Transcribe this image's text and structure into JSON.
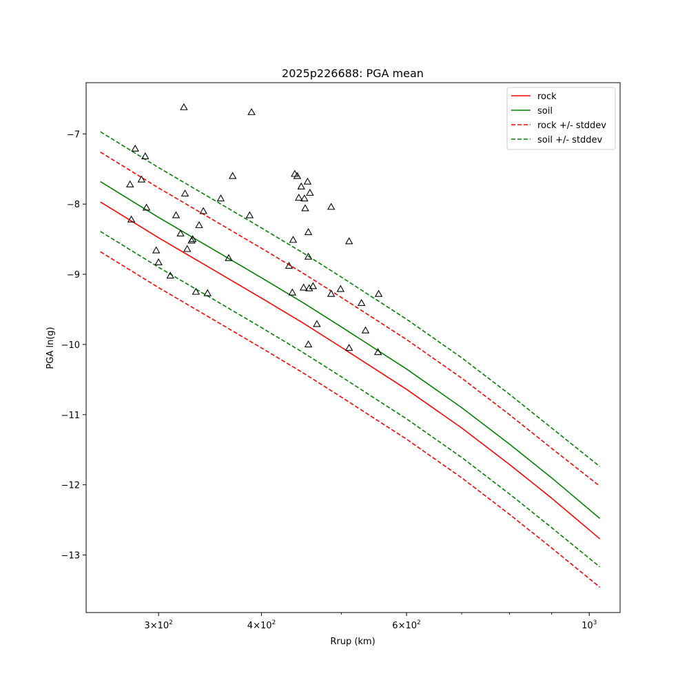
{
  "chart_data": {
    "type": "line",
    "title": "2025p226688: PGA mean",
    "xlabel": "Rrup (km)",
    "ylabel": "PGA ln(g)",
    "xscale": "log",
    "xlim": [
      245,
      1090
    ],
    "ylim": [
      -13.82,
      -6.27
    ],
    "grid": false,
    "legend_position": "top-right",
    "x_tick_labels": [
      {
        "value": 300,
        "base": "3",
        "mult": "×",
        "pow_base": "10",
        "exp": "2"
      },
      {
        "value": 400,
        "base": "4",
        "mult": "×",
        "pow_base": "10",
        "exp": "2"
      },
      {
        "value": 600,
        "base": "6",
        "mult": "×",
        "pow_base": "10",
        "exp": "2"
      },
      {
        "value": 1000,
        "base": "",
        "mult": "",
        "pow_base": "10",
        "exp": "3"
      }
    ],
    "y_ticks": [
      -7,
      -8,
      -9,
      -10,
      -11,
      -12,
      -13
    ],
    "y_tick_labels": [
      "−7",
      "−8",
      "−9",
      "−10",
      "−11",
      "−12",
      "−13"
    ],
    "series": [
      {
        "name": "rock",
        "color": "#ff0000",
        "style": "solid",
        "x": [
          255,
          300,
          350,
          400,
          450,
          500,
          600,
          700,
          800,
          900,
          1030
        ],
        "y": [
          -7.97,
          -8.48,
          -8.94,
          -9.34,
          -9.7,
          -10.04,
          -10.64,
          -11.19,
          -11.71,
          -12.19,
          -12.77
        ]
      },
      {
        "name": "soil",
        "color": "#008000",
        "style": "solid",
        "x": [
          255,
          300,
          350,
          400,
          450,
          500,
          600,
          700,
          800,
          900,
          1030
        ],
        "y": [
          -7.68,
          -8.19,
          -8.65,
          -9.05,
          -9.41,
          -9.75,
          -10.35,
          -10.9,
          -11.42,
          -11.9,
          -12.48
        ]
      },
      {
        "name": "rock +/- stddev",
        "color": "#ff0000",
        "style": "dashed",
        "x": [
          255,
          300,
          350,
          400,
          450,
          500,
          600,
          700,
          800,
          900,
          1030
        ],
        "y": [
          -7.26,
          -7.77,
          -8.23,
          -8.63,
          -8.99,
          -9.33,
          -9.93,
          -10.48,
          -11.0,
          -11.48,
          -12.02
        ]
      },
      {
        "name": "",
        "color": "#ff0000",
        "style": "dashed",
        "x": [
          255,
          300,
          350,
          400,
          450,
          500,
          600,
          700,
          800,
          900,
          1030
        ],
        "y": [
          -8.68,
          -9.19,
          -9.65,
          -10.05,
          -10.41,
          -10.75,
          -11.35,
          -11.9,
          -12.42,
          -12.9,
          -13.46
        ]
      },
      {
        "name": "soil +/- stddev",
        "color": "#008000",
        "style": "dashed",
        "x": [
          255,
          300,
          350,
          400,
          450,
          500,
          600,
          700,
          800,
          900,
          1030
        ],
        "y": [
          -6.97,
          -7.48,
          -7.94,
          -8.34,
          -8.7,
          -9.04,
          -9.64,
          -10.19,
          -10.71,
          -11.19,
          -11.74
        ]
      },
      {
        "name": "",
        "color": "#008000",
        "style": "dashed",
        "x": [
          255,
          300,
          350,
          400,
          450,
          500,
          600,
          700,
          800,
          900,
          1030
        ],
        "y": [
          -8.39,
          -8.9,
          -9.36,
          -9.76,
          -10.12,
          -10.46,
          -11.06,
          -11.61,
          -12.13,
          -12.61,
          -13.17
        ]
      }
    ],
    "observations": {
      "marker": "triangle-open",
      "x": [
        322,
        389,
        281,
        289,
        277,
        286,
        369,
        439,
        442,
        447,
        455,
        458,
        444,
        452,
        451,
        323,
        357,
        290,
        278,
        340,
        387,
        315,
        486,
        336,
        319,
        437,
        456,
        329,
        330,
        511,
        298,
        325,
        432,
        365,
        456,
        300,
        310,
        450,
        462,
        457,
        333,
        344,
        436,
        499,
        486,
        529,
        555,
        467,
        535,
        511,
        554,
        456
      ],
      "y": [
        -6.62,
        -6.69,
        -7.21,
        -7.32,
        -7.72,
        -7.65,
        -7.6,
        -7.57,
        -7.6,
        -7.75,
        -7.68,
        -7.84,
        -7.91,
        -8.06,
        -7.92,
        -7.85,
        -7.92,
        -8.05,
        -8.22,
        -8.1,
        -8.16,
        -8.16,
        -8.04,
        -8.3,
        -8.42,
        -8.51,
        -8.4,
        -8.52,
        -8.5,
        -8.53,
        -8.66,
        -8.64,
        -8.88,
        -8.77,
        -8.75,
        -8.83,
        -9.02,
        -9.19,
        -9.17,
        -9.2,
        -9.25,
        -9.27,
        -9.26,
        -9.21,
        -9.28,
        -9.41,
        -9.28,
        -9.71,
        -9.8,
        -10.05,
        -10.11,
        -10.0
      ]
    }
  }
}
